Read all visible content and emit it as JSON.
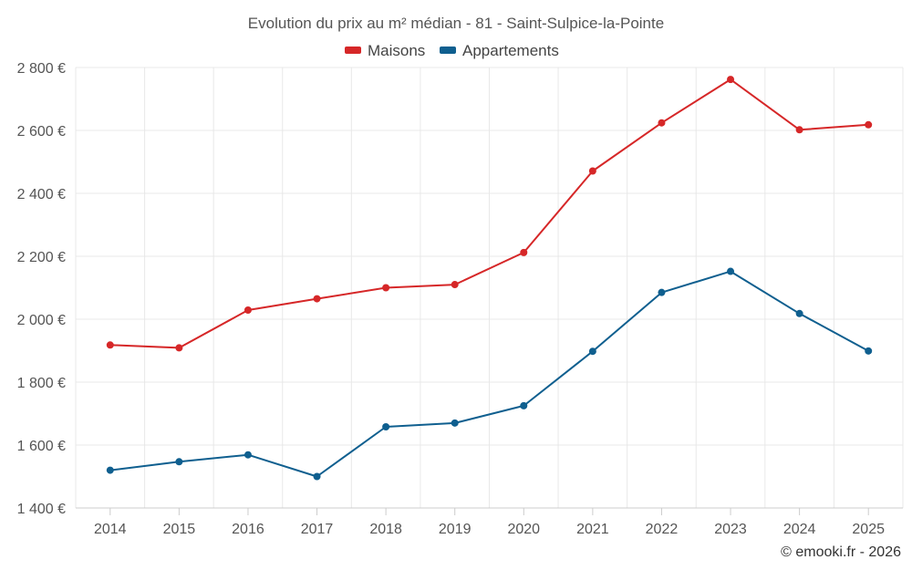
{
  "chart_data": {
    "type": "line",
    "title": "Evolution du prix au m² médian - 81 - Saint-Sulpice-la-Pointe",
    "categories": [
      "2014",
      "2015",
      "2016",
      "2017",
      "2018",
      "2019",
      "2020",
      "2021",
      "2022",
      "2023",
      "2024",
      "2025"
    ],
    "series": [
      {
        "name": "Maisons",
        "color": "#d62728",
        "values": [
          1918,
          1909,
          2029,
          2065,
          2100,
          2110,
          2212,
          2471,
          2624,
          2762,
          2602,
          2618
        ]
      },
      {
        "name": "Appartements",
        "color": "#0f5f8f",
        "values": [
          1520,
          1547,
          1569,
          1500,
          1658,
          1670,
          1725,
          1898,
          2085,
          2152,
          2018,
          1899
        ]
      }
    ],
    "ylim": [
      1400,
      2800
    ],
    "yticks": [
      1400,
      1600,
      1800,
      2000,
      2200,
      2400,
      2600,
      2800
    ],
    "ytick_labels": [
      "1 400 €",
      "1 600 €",
      "1 800 €",
      "2 000 €",
      "2 200 €",
      "2 400 €",
      "2 600 €",
      "2 800 €"
    ],
    "grid": true,
    "legend_position": "top-center",
    "credit": "© emooki.fr - 2026"
  }
}
